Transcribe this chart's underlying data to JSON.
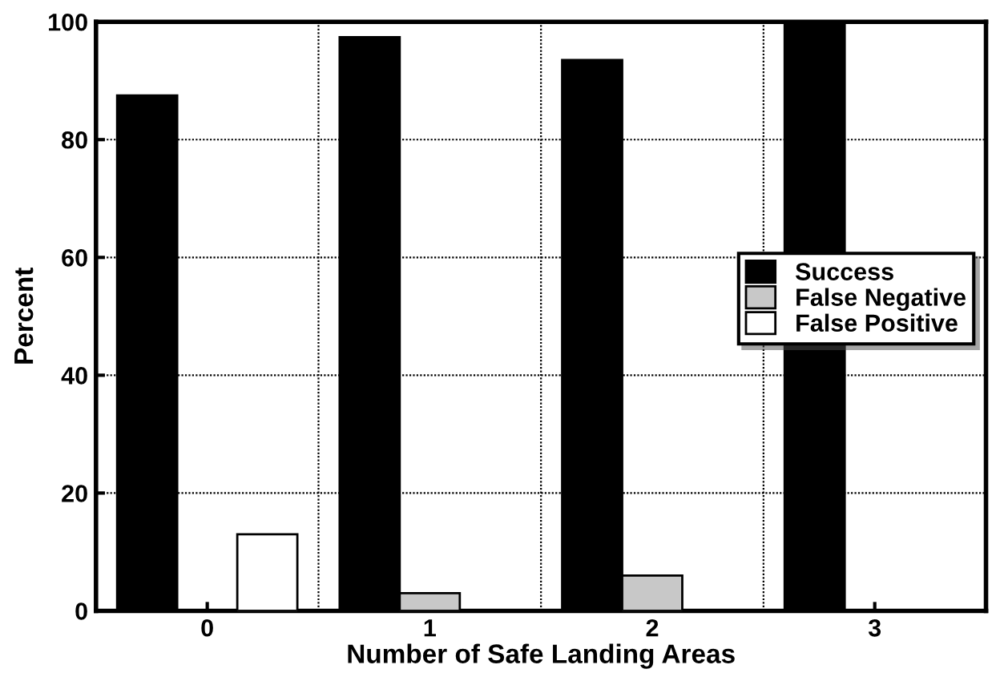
{
  "chart_data": {
    "type": "bar",
    "xlabel": "Number of Safe Landing Areas",
    "ylabel": "Percent",
    "categories": [
      "0",
      "1",
      "2",
      "3"
    ],
    "series": [
      {
        "name": "Success",
        "color": "#000000",
        "values": [
          87.5,
          97.4,
          93.5,
          100
        ]
      },
      {
        "name": "False Negative",
        "color": "#c8c8c8",
        "values": [
          0,
          3,
          6,
          0
        ]
      },
      {
        "name": "False Positive",
        "color": "#ffffff",
        "values": [
          13,
          0,
          0,
          0
        ]
      }
    ],
    "ylim": [
      0,
      100
    ],
    "yticks": [
      0,
      20,
      40,
      60,
      80,
      100
    ],
    "grid": true,
    "legend": "right"
  }
}
